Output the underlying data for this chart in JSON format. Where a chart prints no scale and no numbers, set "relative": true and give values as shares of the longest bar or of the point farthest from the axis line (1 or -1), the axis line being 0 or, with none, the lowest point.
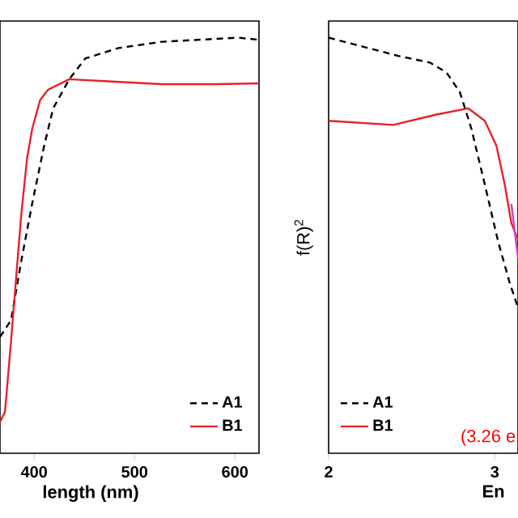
{
  "chart_data": [
    {
      "type": "line",
      "relative": true,
      "xlabel": "length (nm)",
      "xlim": [
        366,
        624
      ],
      "xticks": [
        400,
        500,
        600
      ],
      "legend": "bottom right",
      "series": [
        {
          "name": "A1",
          "color": "#000000",
          "line_style": "dashed",
          "x": [
            366,
            377,
            387,
            398,
            410,
            419,
            435,
            451,
            484,
            527,
            603,
            624
          ],
          "values": [
            0.28,
            0.32,
            0.46,
            0.6,
            0.74,
            0.83,
            0.9,
            0.95,
            0.975,
            0.99,
            1.0,
            0.995
          ]
        },
        {
          "name": "B1",
          "color": "#e8202a",
          "line_style": "solid",
          "x": [
            366,
            371,
            377,
            382,
            387,
            393,
            398,
            406,
            414,
            435,
            474,
            527,
            580,
            624
          ],
          "values": [
            0.075,
            0.1,
            0.27,
            0.42,
            0.57,
            0.71,
            0.78,
            0.85,
            0.875,
            0.9,
            0.895,
            0.888,
            0.888,
            0.89
          ]
        }
      ]
    },
    {
      "type": "line",
      "relative": true,
      "xlabel": "En",
      "ylabel": "f(R)$^{2}$",
      "xlim": [
        2,
        3.14
      ],
      "xticks": [
        2,
        3
      ],
      "legend": "bottom left",
      "annotations": [
        "(3.26 e"
      ],
      "series": [
        {
          "name": "A1",
          "color": "#000000",
          "line_style": "dashed",
          "x": [
            2.0,
            2.22,
            2.42,
            2.61,
            2.71,
            2.79,
            2.86,
            2.94,
            3.02,
            3.09,
            3.14
          ],
          "values": [
            1.0,
            0.977,
            0.956,
            0.94,
            0.916,
            0.869,
            0.78,
            0.647,
            0.51,
            0.41,
            0.35
          ]
        },
        {
          "name": "B1",
          "color": "#e8202a",
          "line_style": "solid",
          "x": [
            2.0,
            2.39,
            2.65,
            2.84,
            2.94,
            3.01,
            3.06,
            3.1,
            3.14
          ],
          "values": [
            0.8,
            0.79,
            0.815,
            0.83,
            0.8,
            0.74,
            0.647,
            0.554,
            0.514
          ]
        },
        {
          "color": "#d040c8",
          "line_style": "solid",
          "x": [
            3.1,
            3.14
          ],
          "values": [
            0.6,
            0.47
          ]
        }
      ]
    }
  ]
}
